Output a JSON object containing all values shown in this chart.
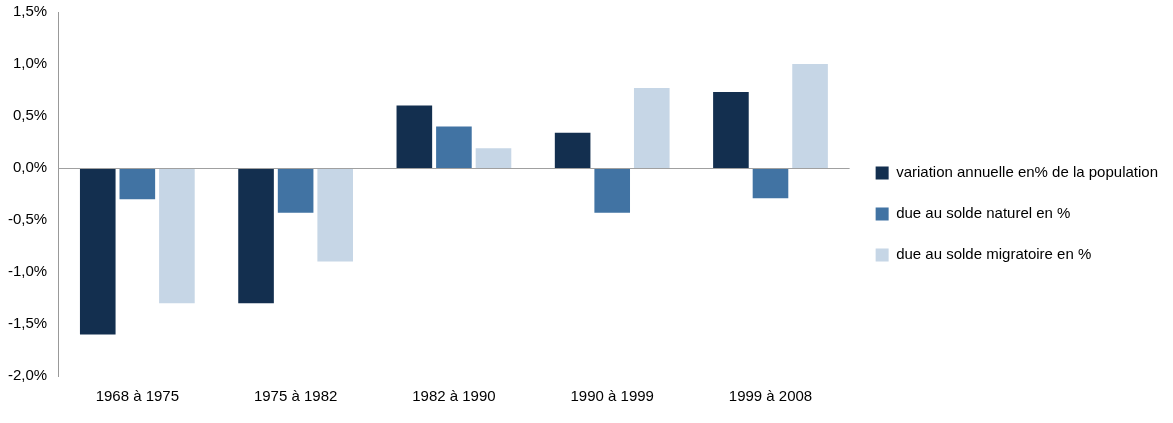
{
  "chart_data": {
    "type": "bar",
    "categories": [
      "1968 à 1975",
      "1975 à 1982",
      "1982 à 1990",
      "1990 à 1999",
      "1999 à 2008"
    ],
    "series": [
      {
        "name": "variation annuelle en% de la population",
        "color": "#132f4f",
        "values": [
          -1.6,
          -1.3,
          0.6,
          0.34,
          0.73
        ]
      },
      {
        "name": "due au solde naturel en %",
        "color": "#4173a3",
        "values": [
          -0.3,
          -0.43,
          0.4,
          -0.43,
          -0.29
        ]
      },
      {
        "name": "due au solde migratoire en %",
        "color": "#c6d6e6",
        "values": [
          -1.3,
          -0.9,
          0.19,
          0.77,
          1.0
        ]
      }
    ],
    "ylim": [
      -2.0,
      1.5
    ],
    "yticks": [
      {
        "value": -2.0,
        "label": "-2,0%"
      },
      {
        "value": -1.5,
        "label": "-1,5%"
      },
      {
        "value": -1.0,
        "label": "-1,0%"
      },
      {
        "value": -0.5,
        "label": "-0,5%"
      },
      {
        "value": 0,
        "label": "0,0%"
      },
      {
        "value": 0.5,
        "label": "0,5%"
      },
      {
        "value": 1.0,
        "label": "1,0%"
      },
      {
        "value": 1.5,
        "label": "1,5%"
      }
    ],
    "ref_lines": [
      {
        "axis": "y",
        "value": 0,
        "color": "#a0a0a0",
        "line_style": "solid"
      }
    ],
    "grid": false,
    "legend": "right"
  }
}
